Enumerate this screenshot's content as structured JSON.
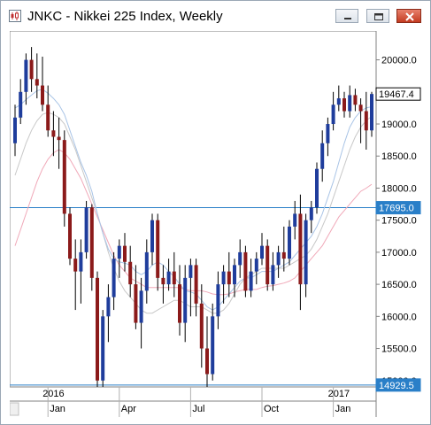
{
  "window": {
    "title": "JNKC - Nikkei 225 Index, Weekly",
    "minimize_icon": "minimize-icon",
    "restore_icon": "restore-icon",
    "close_icon": "close-icon"
  },
  "colors": {
    "up_candle": "#1f3d9c",
    "down_candle": "#8b1a1a",
    "wick": "#000000",
    "ma_fast": "#a9c4e6",
    "ma_mid": "#c8c8c8",
    "ma_slow": "#f0a8b8",
    "hline": "#2a7fc8",
    "label_blue": "#2a7fc8"
  },
  "chart_data": {
    "type": "candlestick",
    "title": "JNKC - Nikkei 225 Index, Weekly",
    "ylim": [
      14900,
      20450
    ],
    "y_ticks": [
      "20000.0",
      "19500.0",
      "19000.0",
      "18500.0",
      "18000.0",
      "17500.0",
      "17000.0",
      "16500.0",
      "16000.0",
      "15500.0",
      "15000.0"
    ],
    "x_month_labels": [
      "Jan",
      "Apr",
      "Jul",
      "Oct",
      "Jan"
    ],
    "x_month_weeks": [
      6,
      19,
      32,
      45,
      58
    ],
    "year_labels": [
      {
        "week": 6,
        "text": "2016"
      },
      {
        "week": 58,
        "text": "2017"
      }
    ],
    "last_price_label": "19467.4",
    "hlines": [
      {
        "value": 17695.0,
        "label": "17695.0"
      },
      {
        "value": 14929.5,
        "label": "14929.5"
      }
    ],
    "candles": [
      [
        18700,
        19300,
        18500,
        19100
      ],
      [
        19100,
        19700,
        19000,
        19500
      ],
      [
        19500,
        20100,
        19300,
        20000
      ],
      [
        20000,
        20200,
        19500,
        19700
      ],
      [
        19700,
        20100,
        19400,
        19600
      ],
      [
        19600,
        20050,
        19200,
        19300
      ],
      [
        19300,
        19600,
        18800,
        18900
      ],
      [
        18900,
        19200,
        18500,
        18800
      ],
      [
        18800,
        19100,
        18300,
        18750
      ],
      [
        18750,
        18900,
        17400,
        17600
      ],
      [
        17600,
        17700,
        16800,
        16900
      ],
      [
        16900,
        17200,
        16100,
        16700
      ],
      [
        16700,
        17200,
        16200,
        17000
      ],
      [
        17000,
        17800,
        16900,
        17700
      ],
      [
        17700,
        17750,
        16400,
        16600
      ],
      [
        16600,
        16700,
        14900,
        15000
      ],
      [
        15000,
        16100,
        14900,
        16000
      ],
      [
        16000,
        16500,
        15600,
        16300
      ],
      [
        16300,
        17000,
        16100,
        16900
      ],
      [
        16900,
        17200,
        16600,
        17100
      ],
      [
        17100,
        17300,
        16700,
        16850
      ],
      [
        16850,
        17100,
        16300,
        16500
      ],
      [
        16500,
        16800,
        15800,
        15900
      ],
      [
        15900,
        16600,
        15500,
        16400
      ],
      [
        16400,
        17200,
        16200,
        17000
      ],
      [
        17000,
        17600,
        16800,
        17500
      ],
      [
        17500,
        17600,
        16400,
        16600
      ],
      [
        16600,
        16800,
        16200,
        16500
      ],
      [
        16500,
        16900,
        16400,
        16700
      ],
      [
        16700,
        17000,
        16300,
        16500
      ],
      [
        16500,
        16800,
        15700,
        15900
      ],
      [
        15900,
        16800,
        15600,
        16600
      ],
      [
        16600,
        16900,
        16000,
        16800
      ],
      [
        16800,
        16900,
        16000,
        16200
      ],
      [
        16200,
        16500,
        15200,
        15500
      ],
      [
        15500,
        16000,
        14900,
        15100
      ],
      [
        15100,
        16200,
        15000,
        16000
      ],
      [
        16000,
        16700,
        15800,
        16500
      ],
      [
        16500,
        16800,
        16200,
        16700
      ],
      [
        16700,
        17000,
        16300,
        16500
      ],
      [
        16500,
        16900,
        16300,
        16800
      ],
      [
        16800,
        17200,
        16600,
        17000
      ],
      [
        17000,
        17100,
        16300,
        16400
      ],
      [
        16400,
        16900,
        16300,
        16700
      ],
      [
        16700,
        17000,
        16500,
        16900
      ],
      [
        16900,
        17300,
        16800,
        17100
      ],
      [
        17100,
        17200,
        16400,
        16500
      ],
      [
        16500,
        17000,
        16400,
        16800
      ],
      [
        16800,
        17100,
        16600,
        17000
      ],
      [
        17000,
        17400,
        16700,
        16900
      ],
      [
        16900,
        17500,
        16800,
        17400
      ],
      [
        17400,
        17800,
        17200,
        17600
      ],
      [
        17600,
        17900,
        16100,
        16500
      ],
      [
        16500,
        17600,
        16300,
        17500
      ],
      [
        17500,
        17800,
        17300,
        17700
      ],
      [
        17700,
        18400,
        17600,
        18300
      ],
      [
        18300,
        18900,
        18100,
        18700
      ],
      [
        18700,
        19100,
        18500,
        19000
      ],
      [
        19000,
        19500,
        18900,
        19300
      ],
      [
        19300,
        19600,
        19200,
        19400
      ],
      [
        19400,
        19500,
        19100,
        19200
      ],
      [
        19200,
        19600,
        19100,
        19450
      ],
      [
        19450,
        19550,
        19200,
        19300
      ],
      [
        19300,
        19400,
        18700,
        19200
      ],
      [
        19200,
        19500,
        18600,
        18900
      ],
      [
        18900,
        19500,
        18800,
        19467.4
      ]
    ],
    "ma_fast": [
      19250,
      19300,
      19380,
      19450,
      19520,
      19540,
      19480,
      19400,
      19300,
      19150,
      18900,
      18650,
      18400,
      18200,
      17950,
      17600,
      17300,
      17050,
      16900,
      16850,
      16830,
      16800,
      16700,
      16650,
      16700,
      16800,
      16850,
      16800,
      16700,
      16620,
      16500,
      16400,
      16380,
      16350,
      16250,
      16150,
      16100,
      16150,
      16250,
      16350,
      16450,
      16550,
      16600,
      16600,
      16650,
      16700,
      16700,
      16700,
      16750,
      16800,
      16850,
      16950,
      17050,
      17150,
      17250,
      17400,
      17600,
      17850,
      18100,
      18400,
      18700,
      18950,
      19100,
      19200,
      19250,
      19270
    ],
    "ma_mid": [
      18200,
      18450,
      18700,
      18900,
      19050,
      19150,
      19180,
      19150,
      19100,
      19000,
      18800,
      18600,
      18350,
      18100,
      17850,
      17600,
      17300,
      17000,
      16750,
      16550,
      16400,
      16300,
      16200,
      16100,
      16050,
      16050,
      16100,
      16150,
      16200,
      16250,
      16250,
      16200,
      16150,
      16150,
      16150,
      16100,
      16050,
      16050,
      16100,
      16200,
      16350,
      16500,
      16600,
      16650,
      16700,
      16750,
      16750,
      16750,
      16750,
      16750,
      16800,
      16850,
      16900,
      16950,
      17050,
      17200,
      17400,
      17600,
      17850,
      18100,
      18350,
      18600,
      18800,
      18950,
      19050,
      19120
    ],
    "ma_slow": [
      17100,
      17350,
      17600,
      17850,
      18100,
      18300,
      18450,
      18550,
      18600,
      18550,
      18450,
      18300,
      18150,
      17950,
      17750,
      17550,
      17350,
      17150,
      16950,
      16800,
      16700,
      16600,
      16550,
      16500,
      16450,
      16450,
      16450,
      16450,
      16450,
      16450,
      16450,
      16420,
      16400,
      16400,
      16400,
      16380,
      16350,
      16340,
      16340,
      16350,
      16380,
      16400,
      16420,
      16420,
      16420,
      16450,
      16470,
      16480,
      16500,
      16520,
      16550,
      16600,
      16700,
      16800,
      16900,
      17000,
      17100,
      17250,
      17400,
      17550,
      17650,
      17750,
      17850,
      17950,
      18000,
      18060
    ]
  }
}
